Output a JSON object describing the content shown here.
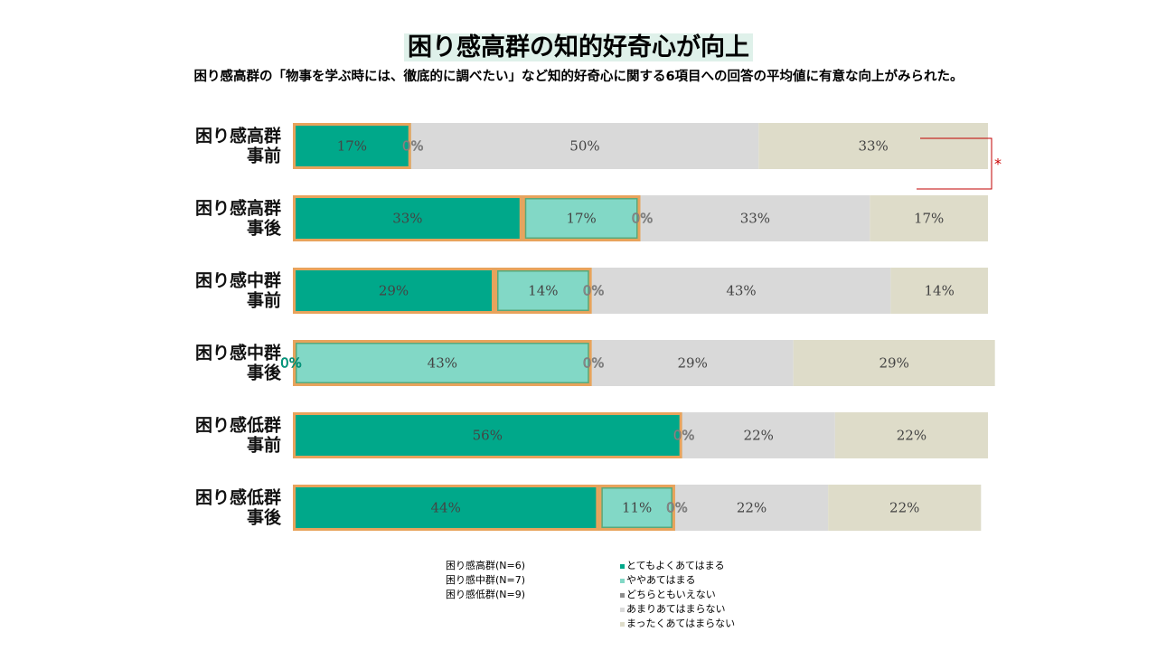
{
  "title": "困り感高群の知的好奇心が向上",
  "subtitle": "困り感高群の「物事を学ぶ時には、徹底的に調べたい」など知的好奇心に関する6項目への回答の平均値に有意な向上がみられた。",
  "significance_marker": "*",
  "colors": {
    "very": "#00a88a",
    "somewhat": "#82d8c6",
    "neutral": "#8c8c8c",
    "not_much": "#d9d9d9",
    "not_at_all": "#dedcc9",
    "highlight_border": "#e8a35c",
    "bracket": "#c00000"
  },
  "legend_groups": [
    "困り感高群(N=6)",
    "困り感中群(N=7)",
    "困り感低群(N=9)"
  ],
  "chart_data": {
    "type": "bar",
    "orientation": "horizontal",
    "stacked": true,
    "percent_scale": true,
    "categories": [
      [
        "困り感高群",
        "事前"
      ],
      [
        "困り感高群",
        "事後"
      ],
      [
        "困り感中群",
        "事前"
      ],
      [
        "困り感中群",
        "事後"
      ],
      [
        "困り感低群",
        "事前"
      ],
      [
        "困り感低群",
        "事後"
      ]
    ],
    "series": [
      {
        "name": "とてもよくあてはまる",
        "color_key": "very",
        "values": [
          17,
          33,
          29,
          0,
          56,
          44
        ],
        "labels": [
          "17%",
          "33%",
          "29%",
          "0%",
          "56%",
          "44%"
        ]
      },
      {
        "name": "ややあてはまる",
        "color_key": "somewhat",
        "values": [
          0,
          17,
          14,
          43,
          0,
          11
        ],
        "labels": [
          "",
          "17%",
          "14%",
          "43%",
          "",
          "11%"
        ]
      },
      {
        "name": "どちらともいえない",
        "color_key": "neutral",
        "values": [
          0,
          0,
          0,
          0,
          0,
          0
        ],
        "labels": [
          "0%",
          "0%",
          "0%",
          "0%",
          "0%",
          "0%"
        ]
      },
      {
        "name": "あまりあてはまらない",
        "color_key": "not_much",
        "values": [
          50,
          33,
          43,
          29,
          22,
          22
        ],
        "labels": [
          "50%",
          "33%",
          "43%",
          "29%",
          "22%",
          "22%"
        ]
      },
      {
        "name": "まったくあてはまらない",
        "color_key": "not_at_all",
        "values": [
          33,
          17,
          14,
          29,
          22,
          22
        ],
        "labels": [
          "33%",
          "17%",
          "14%",
          "29%",
          "22%",
          "22%"
        ]
      }
    ],
    "xlim": [
      0,
      100
    ],
    "significance": {
      "between": [
        0,
        1
      ],
      "marker": "*"
    }
  }
}
